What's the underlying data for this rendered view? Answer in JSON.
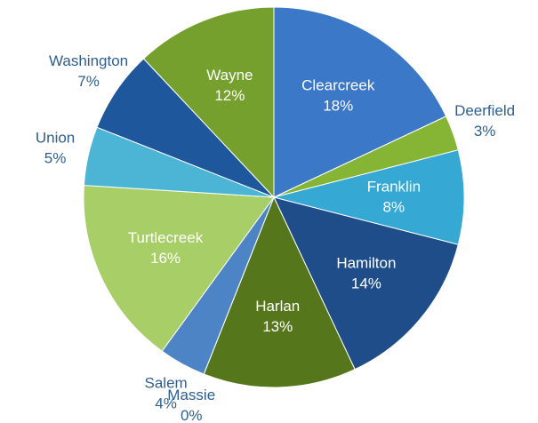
{
  "chart_data": {
    "type": "pie",
    "categories": [
      "Clearcreek",
      "Deerfield",
      "Franklin",
      "Hamilton",
      "Harlan",
      "Massie",
      "Salem",
      "Turtlecreek",
      "Union",
      "Washington",
      "Wayne"
    ],
    "values": [
      18,
      3,
      8,
      14,
      13,
      0,
      4,
      16,
      5,
      7,
      12
    ],
    "value_labels": [
      "18%",
      "3%",
      "8%",
      "14%",
      "13%",
      "0%",
      "4%",
      "16%",
      "5%",
      "7%",
      "12%"
    ],
    "colors": [
      "#3b78c8",
      "#86b535",
      "#35a8d3",
      "#1f4d8a",
      "#56761c",
      "#1d6586",
      "#4d84c5",
      "#a8ce68",
      "#4cb5d5",
      "#1f579c",
      "#76a02e"
    ]
  }
}
